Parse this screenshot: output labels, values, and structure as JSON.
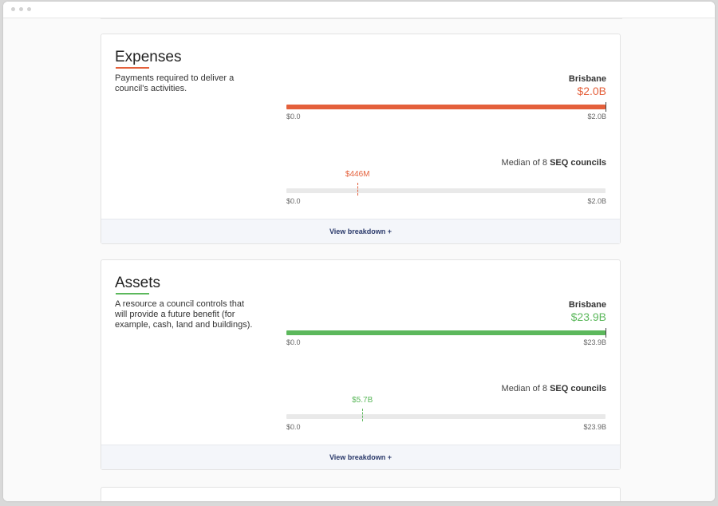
{
  "colors": {
    "expenses_accent": "#e4603b",
    "assets_accent": "#5cb85c",
    "link": "#2b3a6b"
  },
  "cards": [
    {
      "title": "Expenses",
      "description": "Payments required to deliver a council's activities.",
      "council_name": "Brisbane",
      "council_value": "$2.0B",
      "bar_fill_fraction": 1.0,
      "axis_min_label": "$0.0",
      "axis_max_label": "$2.0B",
      "median_label_prefix": "Median of 8 ",
      "median_label_bold": "SEQ councils",
      "median_value": "$446M",
      "median_fraction": 0.223,
      "median_axis_min_label": "$0.0",
      "median_axis_max_label": "$2.0B",
      "footer_link": "View breakdown +"
    },
    {
      "title": "Assets",
      "description": "A resource a council controls that will provide a future benefit (for example, cash, land and buildings).",
      "council_name": "Brisbane",
      "council_value": "$23.9B",
      "bar_fill_fraction": 1.0,
      "axis_min_label": "$0.0",
      "axis_max_label": "$23.9B",
      "median_label_prefix": "Median of 8 ",
      "median_label_bold": "SEQ councils",
      "median_value": "$5.7B",
      "median_fraction": 0.238,
      "median_axis_min_label": "$0.0",
      "median_axis_max_label": "$23.9B",
      "footer_link": "View breakdown +"
    }
  ]
}
